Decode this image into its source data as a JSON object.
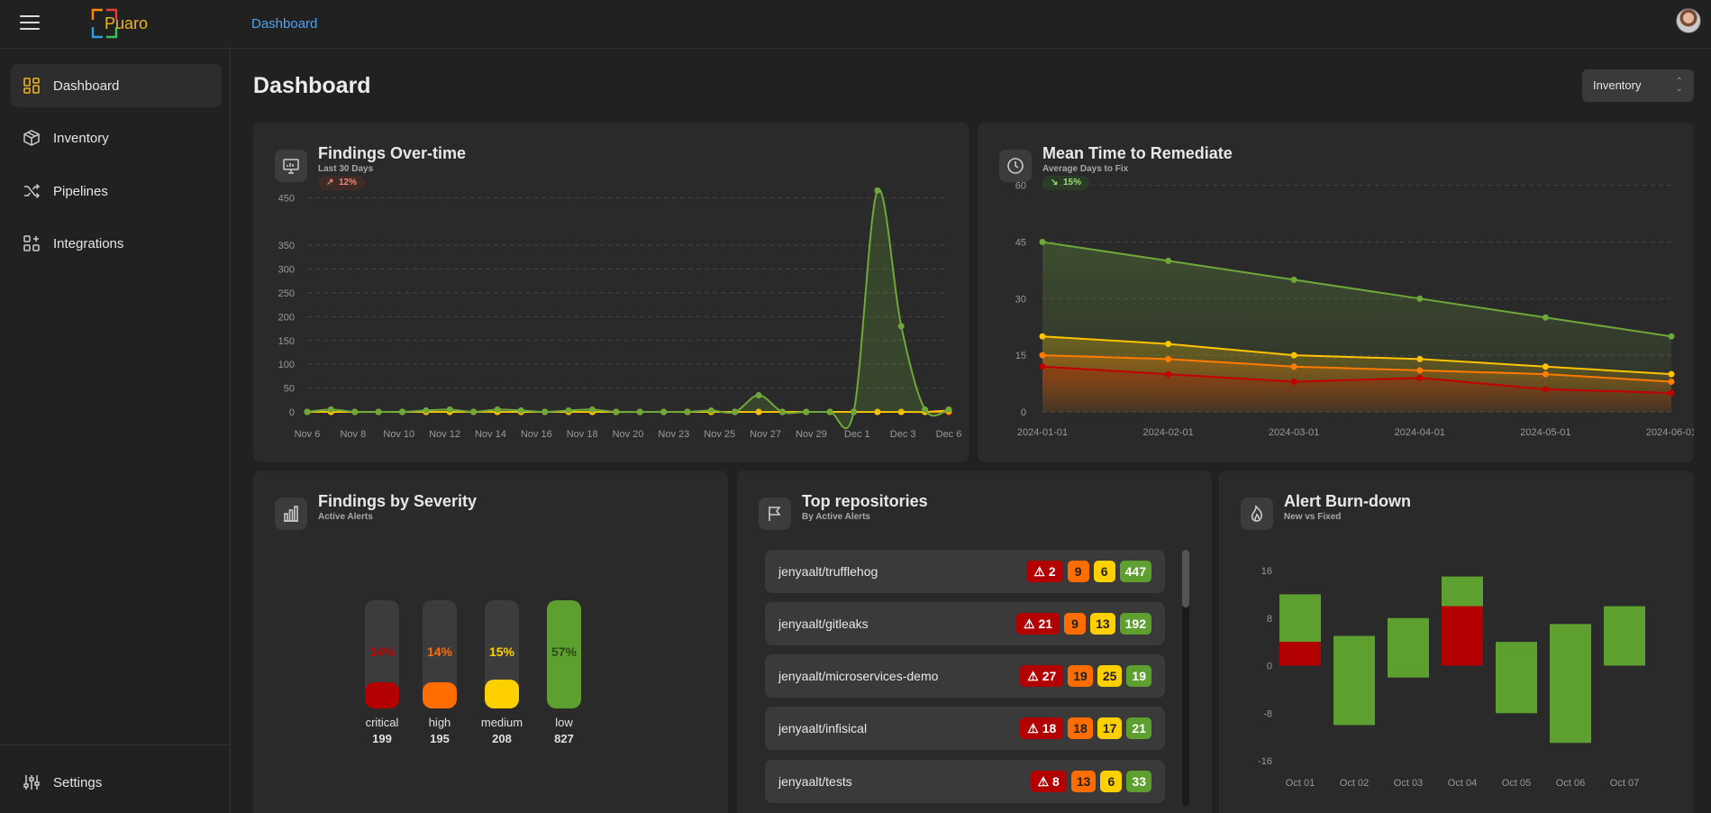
{
  "app": {
    "logo_text": "Puaro"
  },
  "topbar": {
    "breadcrumb": "Dashboard"
  },
  "sidebar": {
    "items": [
      {
        "label": "Dashboard",
        "icon": "dashboard-icon",
        "active": true
      },
      {
        "label": "Inventory",
        "icon": "box-icon"
      },
      {
        "label": "Pipelines",
        "icon": "shuffle-icon"
      },
      {
        "label": "Integrations",
        "icon": "grid-plus-icon"
      }
    ],
    "settings": {
      "label": "Settings",
      "icon": "sliders-icon"
    }
  },
  "page": {
    "title": "Dashboard",
    "select_value": "Inventory"
  },
  "findings_overtime": {
    "title": "Findings Over-time",
    "subtitle": "Last 30 Days",
    "change": "12%",
    "change_dir": "up",
    "chart_data": {
      "type": "line",
      "x_ticks": [
        "Nov 6",
        "Nov 8",
        "Nov 10",
        "Nov 12",
        "Nov 14",
        "Nov 16",
        "Nov 18",
        "Nov 20",
        "Nov 23",
        "Nov 25",
        "Nov 27",
        "Nov 29",
        "Dec 1",
        "Dec 3",
        "Dec 6"
      ],
      "y_ticks": [
        0,
        50,
        100,
        150,
        200,
        250,
        300,
        350,
        450
      ],
      "ylim": [
        0,
        460
      ],
      "series": [
        {
          "color": "#6fa83a",
          "values": [
            0,
            5,
            0,
            0,
            0,
            3,
            5,
            0,
            5,
            3,
            0,
            3,
            5,
            0,
            0,
            0,
            0,
            3,
            0,
            35,
            0,
            0,
            0,
            0,
            465,
            180,
            5,
            5
          ]
        },
        {
          "color": "#ffc400",
          "values": [
            0,
            0,
            0,
            0,
            0,
            0,
            0,
            0,
            0,
            0,
            0,
            0,
            0,
            0,
            0,
            0,
            0,
            0,
            0,
            0,
            0,
            0,
            0,
            0,
            0,
            0,
            0,
            3
          ]
        },
        {
          "color": "#ff7a00",
          "values": [
            0,
            0,
            0,
            0,
            0,
            0,
            0,
            0,
            0,
            0,
            0,
            0,
            0,
            0,
            0,
            0,
            0,
            0,
            0,
            0,
            0,
            0,
            0,
            0,
            0,
            0,
            0,
            0
          ]
        },
        {
          "color": "#c20000",
          "values": [
            0,
            0,
            0,
            0,
            0,
            0,
            0,
            0,
            0,
            0,
            0,
            0,
            0,
            0,
            0,
            0,
            0,
            0,
            0,
            0,
            0,
            0,
            0,
            0,
            0,
            0,
            0,
            0
          ]
        }
      ]
    }
  },
  "mttr": {
    "title": "Mean Time to Remediate",
    "subtitle": "Average Days to Fix",
    "change": "15%",
    "change_dir": "down",
    "chart_data": {
      "type": "area",
      "x": [
        "2024-01-01",
        "2024-02-01",
        "2024-03-01",
        "2024-04-01",
        "2024-05-01",
        "2024-06-01"
      ],
      "y_ticks": [
        0,
        15,
        30,
        45,
        60
      ],
      "ylim": [
        0,
        58
      ],
      "series": [
        {
          "color": "#6fa83a",
          "values": [
            45,
            40,
            35,
            30,
            25,
            20
          ]
        },
        {
          "color": "#ffc400",
          "values": [
            20,
            18,
            15,
            14,
            12,
            10
          ]
        },
        {
          "color": "#ff7a00",
          "values": [
            15,
            14,
            12,
            11,
            10,
            8
          ]
        },
        {
          "color": "#c20000",
          "values": [
            12,
            10,
            8,
            9,
            6,
            5
          ]
        }
      ]
    }
  },
  "severity": {
    "title": "Findings by Severity",
    "subtitle": "Active Alerts",
    "chart_data": {
      "type": "bar",
      "items": [
        {
          "name": "critical",
          "pct": "14%",
          "count": "199",
          "fraction": 0.14,
          "color": "#b30000"
        },
        {
          "name": "high",
          "pct": "14%",
          "count": "195",
          "fraction": 0.14,
          "color": "#ff6d00"
        },
        {
          "name": "medium",
          "pct": "15%",
          "count": "208",
          "fraction": 0.15,
          "color": "#ffd000"
        },
        {
          "name": "low",
          "pct": "57%",
          "count": "827",
          "fraction": 0.57,
          "color": "#5ea02f"
        }
      ]
    }
  },
  "repos": {
    "title": "Top repositories",
    "subtitle": "By Active Alerts",
    "items": [
      {
        "name": "jenyaalt/trufflehog",
        "critical": "2",
        "high": "9",
        "medium": "6",
        "low": "447"
      },
      {
        "name": "jenyaalt/gitleaks",
        "critical": "21",
        "high": "9",
        "medium": "13",
        "low": "192"
      },
      {
        "name": "jenyaalt/microservices-demo",
        "critical": "27",
        "high": "19",
        "medium": "25",
        "low": "19"
      },
      {
        "name": "jenyaalt/infisical",
        "critical": "18",
        "high": "18",
        "medium": "17",
        "low": "21"
      },
      {
        "name": "jenyaalt/tests",
        "critical": "8",
        "high": "13",
        "medium": "6",
        "low": "33"
      }
    ]
  },
  "burndown": {
    "title": "Alert Burn-down",
    "subtitle": "New vs Fixed",
    "chart_data": {
      "type": "bar",
      "categories": [
        "Oct 01",
        "Oct 02",
        "Oct 03",
        "Oct 04",
        "Oct 05",
        "Oct 06",
        "Oct 07"
      ],
      "y_ticks": [
        16,
        8,
        0,
        -8,
        -16
      ],
      "ylim": [
        -16,
        16
      ],
      "bars": [
        {
          "green": [
            4,
            12
          ],
          "red": [
            0,
            4
          ]
        },
        {
          "green": [
            -10,
            5
          ],
          "red": null
        },
        {
          "green": [
            -2,
            8
          ],
          "red": null
        },
        {
          "green": [
            10,
            15
          ],
          "red": [
            0,
            10
          ]
        },
        {
          "green": [
            -8,
            4
          ],
          "red": null
        },
        {
          "green": [
            -13,
            7
          ],
          "red": null
        },
        {
          "green": [
            0,
            10
          ],
          "red": null
        }
      ]
    }
  },
  "colors": {
    "accent": "#4ea3f0",
    "critical": "#b30000",
    "high": "#ff6d00",
    "medium": "#ffd000",
    "low": "#5ea02f"
  }
}
